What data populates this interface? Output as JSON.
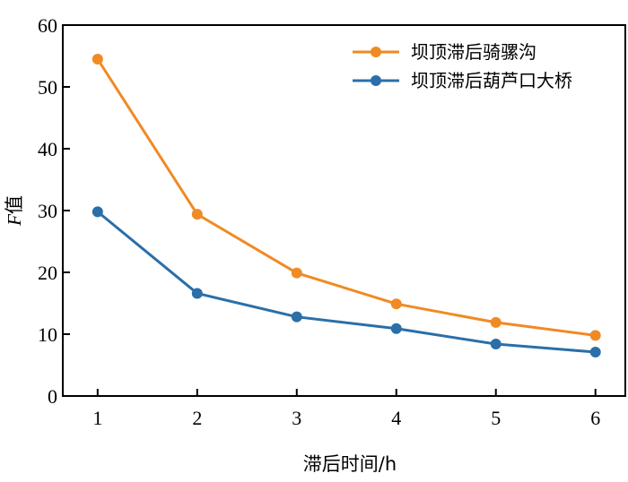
{
  "chart_data": {
    "type": "line",
    "x": [
      1,
      2,
      3,
      4,
      5,
      6
    ],
    "xlabel": "滞后时间/h",
    "ylabel_italic": "F",
    "ylabel_rest": "值",
    "xlim": [
      0.65,
      6.3
    ],
    "ylim": [
      0,
      60
    ],
    "xticks": [
      "1",
      "2",
      "3",
      "4",
      "5",
      "6"
    ],
    "yticks": [
      "0",
      "10",
      "20",
      "30",
      "40",
      "50",
      "60"
    ],
    "grid": false,
    "legend_position": "top-right",
    "series": [
      {
        "name": "坝顶滞后骑骡沟",
        "color": "#f08a24",
        "values": [
          54.5,
          29.4,
          19.9,
          14.9,
          11.9,
          9.8
        ]
      },
      {
        "name": "坝顶滞后葫芦口大桥",
        "color": "#2a6fa8",
        "values": [
          29.8,
          16.6,
          12.8,
          10.9,
          8.4,
          7.1
        ]
      }
    ]
  }
}
